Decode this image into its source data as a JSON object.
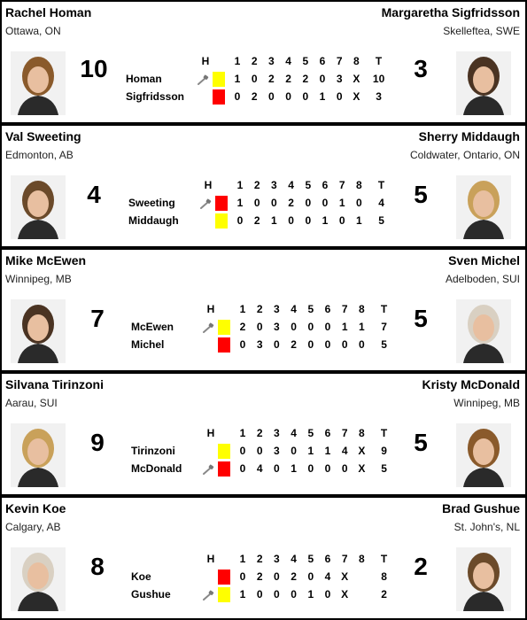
{
  "colors": {
    "yellow": "#ffff00",
    "red": "#ff0000",
    "frame": "#000000"
  },
  "header_cells": [
    "H",
    "1",
    "2",
    "3",
    "4",
    "5",
    "6",
    "7",
    "8",
    "T"
  ],
  "games": [
    {
      "left": {
        "name": "Rachel Homan",
        "location": "Ottawa, ON",
        "total": "10",
        "photo": "player-photo"
      },
      "right": {
        "name": "Margaretha Sigfridsson",
        "location": "Skelleftea, SWE",
        "total": "3",
        "photo": "player-photo"
      },
      "rows": [
        {
          "team": "Homan",
          "stone": "yellow",
          "hammer": true,
          "scores": [
            "1",
            "0",
            "2",
            "2",
            "2",
            "0",
            "3",
            "X"
          ],
          "total": "10"
        },
        {
          "team": "Sigfridsson",
          "stone": "red",
          "hammer": false,
          "scores": [
            "0",
            "2",
            "0",
            "0",
            "0",
            "1",
            "0",
            "X"
          ],
          "total": "3"
        }
      ]
    },
    {
      "left": {
        "name": "Val Sweeting",
        "location": "Edmonton, AB",
        "total": "4",
        "photo": "player-photo"
      },
      "right": {
        "name": "Sherry Middaugh",
        "location": "Coldwater, Ontario, ON",
        "total": "5",
        "photo": "player-photo"
      },
      "rows": [
        {
          "team": "Sweeting",
          "stone": "red",
          "hammer": true,
          "scores": [
            "1",
            "0",
            "0",
            "2",
            "0",
            "0",
            "1",
            "0"
          ],
          "total": "4"
        },
        {
          "team": "Middaugh",
          "stone": "yellow",
          "hammer": false,
          "scores": [
            "0",
            "2",
            "1",
            "0",
            "0",
            "1",
            "0",
            "1"
          ],
          "total": "5"
        }
      ]
    },
    {
      "left": {
        "name": "Mike McEwen",
        "location": "Winnipeg, MB",
        "total": "7",
        "photo": "player-photo"
      },
      "right": {
        "name": "Sven Michel",
        "location": "Adelboden, SUI",
        "total": "5",
        "photo": "player-photo"
      },
      "rows": [
        {
          "team": "McEwen",
          "stone": "yellow",
          "hammer": true,
          "scores": [
            "2",
            "0",
            "3",
            "0",
            "0",
            "0",
            "1",
            "1"
          ],
          "total": "7"
        },
        {
          "team": "Michel",
          "stone": "red",
          "hammer": false,
          "scores": [
            "0",
            "3",
            "0",
            "2",
            "0",
            "0",
            "0",
            "0"
          ],
          "total": "5"
        }
      ]
    },
    {
      "left": {
        "name": "Silvana Tirinzoni",
        "location": "Aarau, SUI",
        "total": "9",
        "photo": "player-photo"
      },
      "right": {
        "name": "Kristy McDonald",
        "location": "Winnipeg, MB",
        "total": "5",
        "photo": "player-photo"
      },
      "rows": [
        {
          "team": "Tirinzoni",
          "stone": "yellow",
          "hammer": false,
          "scores": [
            "0",
            "0",
            "3",
            "0",
            "1",
            "1",
            "4",
            "X"
          ],
          "total": "9"
        },
        {
          "team": "McDonald",
          "stone": "red",
          "hammer": true,
          "scores": [
            "0",
            "4",
            "0",
            "1",
            "0",
            "0",
            "0",
            "X"
          ],
          "total": "5"
        }
      ]
    },
    {
      "left": {
        "name": "Kevin Koe",
        "location": "Calgary, AB",
        "total": "8",
        "photo": "player-photo"
      },
      "right": {
        "name": "Brad Gushue",
        "location": "St. John's, NL",
        "total": "2",
        "photo": "player-photo"
      },
      "rows": [
        {
          "team": "Koe",
          "stone": "red",
          "hammer": false,
          "scores": [
            "0",
            "2",
            "0",
            "2",
            "0",
            "4",
            "X",
            ""
          ],
          "total": "8"
        },
        {
          "team": "Gushue",
          "stone": "yellow",
          "hammer": true,
          "scores": [
            "1",
            "0",
            "0",
            "0",
            "1",
            "0",
            "X",
            ""
          ],
          "total": "2"
        }
      ]
    }
  ]
}
